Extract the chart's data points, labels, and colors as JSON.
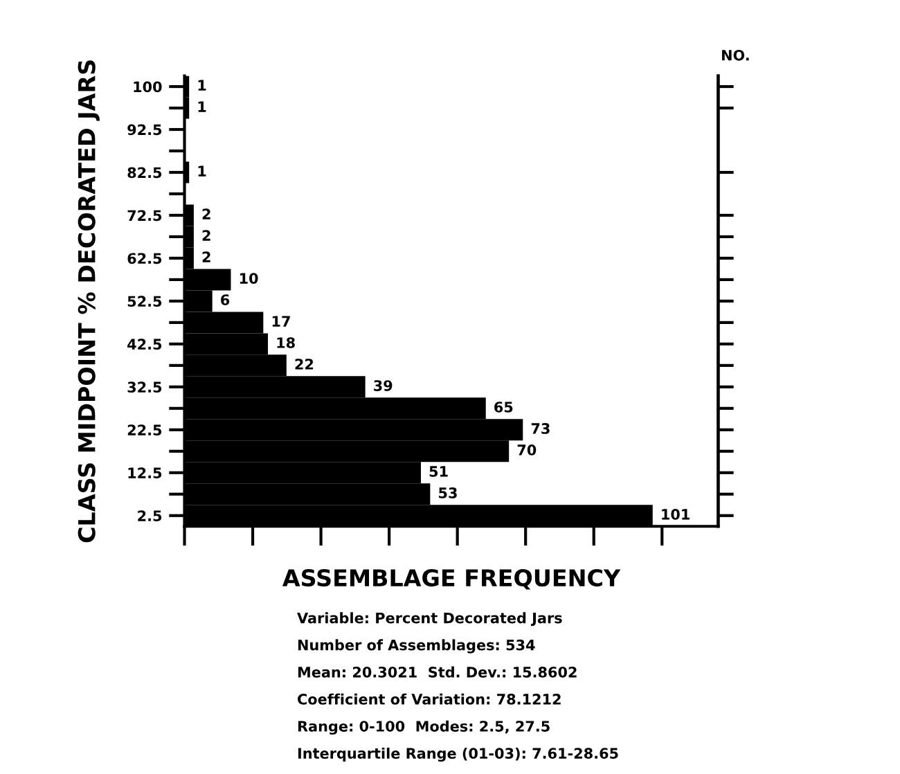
{
  "chart_data": {
    "type": "bar",
    "orientation": "horizontal",
    "xlabel": "ASSEMBLAGE FREQUENCY",
    "ylabel": "CLASS MIDPOINT % DECORATED JARS",
    "y2label": "NO.",
    "categories": [
      "100",
      null,
      "92.5",
      null,
      "82.5",
      null,
      "72.5",
      null,
      "62.5",
      null,
      "52.5",
      null,
      "42.5",
      null,
      "32.5",
      null,
      "22.5",
      null,
      "12.5",
      null,
      "2.5"
    ],
    "values": [
      1,
      1,
      0,
      0,
      1,
      0,
      2,
      2,
      2,
      10,
      6,
      17,
      18,
      22,
      39,
      65,
      73,
      70,
      51,
      53,
      101
    ],
    "value_labels": [
      "1",
      "1",
      null,
      null,
      "1",
      null,
      "2",
      "2",
      "2",
      "10",
      "6",
      "17",
      "18",
      "22",
      "39",
      "65",
      "73",
      "70",
      "51",
      "53",
      "101"
    ],
    "color": "#000000",
    "grid": false,
    "legend": false,
    "tick_labels": "y",
    "annotations": [
      "Variable: Percent Decorated Jars",
      "Number of Assemblages: 534",
      "Mean: 20.3021  Std. Dev.: 15.8602",
      "Coefficient of Variation: 78.1212",
      "Range: 0-100  Modes: 2.5, 27.5",
      "Interquartile Range (01-03): 7.61-28.65"
    ]
  }
}
